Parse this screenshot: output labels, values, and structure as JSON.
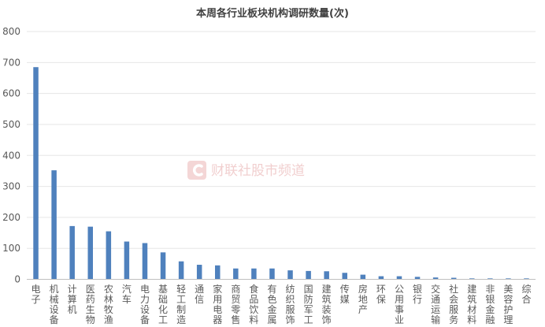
{
  "colors": {
    "bar": "#4f81bd",
    "grid": "#e6e6e6",
    "axis": "#bfbfbf",
    "watermark": "#f1cfcf"
  },
  "watermark": {
    "icon": "watermark-logo-icon",
    "text": "财联社股市频道"
  },
  "chart_data": {
    "type": "bar",
    "title": "本周各行业板块机构调研数量(次)",
    "xlabel": "",
    "ylabel": "",
    "ylim": [
      0,
      800
    ],
    "yticks": [
      0,
      100,
      200,
      300,
      400,
      500,
      600,
      700,
      800
    ],
    "grid": true,
    "legend": "none",
    "categories": [
      "电子",
      "机械设备",
      "计算机",
      "医药生物",
      "农林牧渔",
      "汽车",
      "电力设备",
      "基础化工",
      "轻工制造",
      "通信",
      "家用电器",
      "商贸零售",
      "食品饮料",
      "有色金属",
      "纺织服饰",
      "国防军工",
      "建筑装饰",
      "传媒",
      "房地产",
      "环保",
      "公用事业",
      "银行",
      "交通运输",
      "社会服务",
      "建筑材料",
      "非银金融",
      "美容护理",
      "综合"
    ],
    "values": [
      685,
      352,
      172,
      170,
      155,
      122,
      117,
      87,
      58,
      47,
      45,
      35,
      35,
      35,
      29,
      27,
      26,
      21,
      15,
      10,
      10,
      8,
      6,
      5,
      3,
      3,
      3,
      3
    ]
  }
}
